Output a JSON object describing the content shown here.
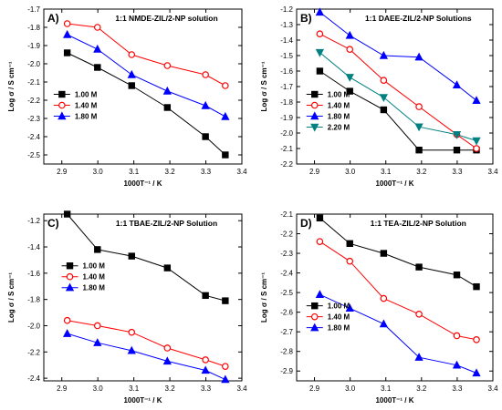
{
  "chart_data": [
    {
      "type": "line",
      "panel_label": "A)",
      "title": "1:1 NMDE-ZIL/2-NP solution",
      "xlabel": "1000T⁻¹ / K",
      "ylabel": "Log σ / S cm⁻¹",
      "xlim": [
        2.85,
        3.4
      ],
      "ylim": [
        -2.55,
        -1.7
      ],
      "xticks": [
        2.9,
        3.0,
        3.1,
        3.2,
        3.3,
        3.4
      ],
      "xtick_labels": [
        "2.9",
        "3.0",
        "3.1",
        "3.2",
        "3.3",
        "3.4"
      ],
      "yticks": [
        -2.5,
        -2.4,
        -2.3,
        -2.2,
        -2.1,
        -2.0,
        -1.9,
        -1.8,
        -1.7
      ],
      "ytick_labels": [
        "-2.5",
        "-2.4",
        "-2.3",
        "-2.2",
        "-2.1",
        "-2.0",
        "-1.9",
        "-1.8",
        "-1.7"
      ],
      "legend": "lower-left",
      "series": [
        {
          "name": "1.00 M",
          "color": "#000000",
          "marker": "square",
          "x": [
            2.915,
            2.999,
            3.094,
            3.193,
            3.299,
            3.354
          ],
          "y": [
            -1.94,
            -2.02,
            -2.12,
            -2.24,
            -2.4,
            -2.5
          ]
        },
        {
          "name": "1.40 M",
          "color": "#ff0000",
          "marker": "circle",
          "x": [
            2.915,
            2.999,
            3.094,
            3.193,
            3.299,
            3.354
          ],
          "y": [
            -1.78,
            -1.8,
            -1.95,
            -2.01,
            -2.06,
            -2.12
          ]
        },
        {
          "name": "1.80 M",
          "color": "#0000ff",
          "marker": "triangle",
          "x": [
            2.915,
            2.999,
            3.094,
            3.193,
            3.299,
            3.354
          ],
          "y": [
            -1.84,
            -1.92,
            -2.06,
            -2.15,
            -2.23,
            -2.29
          ]
        }
      ]
    },
    {
      "type": "line",
      "panel_label": "B)",
      "title": "1:1 DAEE-ZIL/2-NP Solutions",
      "xlabel": "1000T⁻¹ / K",
      "ylabel": "Log σ / S cm⁻¹",
      "xlim": [
        2.85,
        3.4
      ],
      "ylim": [
        -2.2,
        -1.2
      ],
      "xticks": [
        2.9,
        3.0,
        3.1,
        3.2,
        3.3,
        3.4
      ],
      "xtick_labels": [
        "2.9",
        "3.0",
        "3.1",
        "3.2",
        "3.3",
        "3.4"
      ],
      "yticks": [
        -2.2,
        -2.1,
        -2.0,
        -1.9,
        -1.8,
        -1.7,
        -1.6,
        -1.5,
        -1.4,
        -1.3,
        -1.2
      ],
      "ytick_labels": [
        "-2.2",
        "-2.1",
        "-2.0",
        "-1.9",
        "-1.8",
        "-1.7",
        "-1.6",
        "-1.5",
        "-1.4",
        "-1.3",
        "-1.2"
      ],
      "legend": "lower-left",
      "series": [
        {
          "name": "1.00 M",
          "color": "#000000",
          "marker": "square",
          "x": [
            2.915,
            2.999,
            3.094,
            3.193,
            3.299,
            3.354
          ],
          "y": [
            -1.6,
            -1.73,
            -1.85,
            -2.11,
            -2.11,
            -2.11
          ]
        },
        {
          "name": "1.40 M",
          "color": "#ff0000",
          "marker": "circle",
          "x": [
            2.915,
            2.999,
            3.094,
            3.193,
            3.299,
            3.354
          ],
          "y": [
            -1.36,
            -1.46,
            -1.66,
            -1.83,
            -2.01,
            -2.1
          ]
        },
        {
          "name": "1.80 M",
          "color": "#0000ff",
          "marker": "triangle",
          "x": [
            2.915,
            2.999,
            3.094,
            3.193,
            3.299,
            3.354
          ],
          "y": [
            -1.22,
            -1.37,
            -1.5,
            -1.51,
            -1.69,
            -1.79
          ]
        },
        {
          "name": "2.20 M",
          "color": "#008080",
          "marker": "triangle-down",
          "x": [
            2.915,
            2.999,
            3.094,
            3.193,
            3.299,
            3.354
          ],
          "y": [
            -1.48,
            -1.64,
            -1.77,
            -1.96,
            -2.01,
            -2.05
          ]
        }
      ]
    },
    {
      "type": "line",
      "panel_label": "C)",
      "title": "1:1 TBAE-ZIL/2-NP Solution",
      "xlabel": "1000T⁻¹ / K",
      "ylabel": "Log σ / S cm⁻¹",
      "xlim": [
        2.85,
        3.4
      ],
      "ylim": [
        -2.42,
        -1.15
      ],
      "xticks": [
        2.9,
        3.0,
        3.1,
        3.2,
        3.3,
        3.4
      ],
      "xtick_labels": [
        "2.9",
        "3.0",
        "3.1",
        "3.2",
        "3.3",
        "3.4"
      ],
      "yticks": [
        -2.4,
        -2.2,
        -2.0,
        -1.8,
        -1.6,
        -1.4,
        -1.2
      ],
      "ytick_labels": [
        "-2.4",
        "-2.2",
        "-2.0",
        "-1.8",
        "-1.6",
        "-1.4",
        "-1.2"
      ],
      "legend": "upper-center",
      "series": [
        {
          "name": "1.00 M",
          "color": "#000000",
          "marker": "square",
          "x": [
            2.915,
            2.999,
            3.094,
            3.193,
            3.299,
            3.354
          ],
          "y": [
            -1.15,
            -1.42,
            -1.47,
            -1.56,
            -1.77,
            -1.81
          ]
        },
        {
          "name": "1.40 M",
          "color": "#ff0000",
          "marker": "circle",
          "x": [
            2.915,
            2.999,
            3.094,
            3.193,
            3.299,
            3.354
          ],
          "y": [
            -1.96,
            -2.0,
            -2.05,
            -2.17,
            -2.26,
            -2.31
          ]
        },
        {
          "name": "1.80 M",
          "color": "#0000ff",
          "marker": "triangle",
          "x": [
            2.915,
            2.999,
            3.094,
            3.193,
            3.299,
            3.354
          ],
          "y": [
            -2.06,
            -2.13,
            -2.19,
            -2.27,
            -2.34,
            -2.41
          ]
        }
      ]
    },
    {
      "type": "line",
      "panel_label": "D)",
      "title": "1:1 TEA-ZIL/2-NP Solution",
      "xlabel": "1000T⁻¹ / K",
      "ylabel": "Log σ / S cm⁻¹",
      "xlim": [
        2.85,
        3.4
      ],
      "ylim": [
        -2.95,
        -2.1
      ],
      "xticks": [
        2.9,
        3.0,
        3.1,
        3.2,
        3.3,
        3.4
      ],
      "xtick_labels": [
        "2.9",
        "3.0",
        "3.1",
        "3.2",
        "3.3",
        "3.4"
      ],
      "yticks": [
        -2.9,
        -2.8,
        -2.7,
        -2.6,
        -2.5,
        -2.4,
        -2.3,
        -2.2,
        -2.1
      ],
      "ytick_labels": [
        "-2.9",
        "-2.8",
        "-2.7",
        "-2.6",
        "-2.5",
        "-2.4",
        "-2.3",
        "-2.2",
        "-2.1"
      ],
      "legend": "lower-left",
      "series": [
        {
          "name": "1.00 M",
          "color": "#000000",
          "marker": "square",
          "x": [
            2.915,
            2.999,
            3.094,
            3.193,
            3.299,
            3.354
          ],
          "y": [
            -2.12,
            -2.25,
            -2.3,
            -2.37,
            -2.41,
            -2.47
          ]
        },
        {
          "name": "1.40 M",
          "color": "#ff0000",
          "marker": "circle",
          "x": [
            2.915,
            2.999,
            3.094,
            3.193,
            3.299,
            3.354
          ],
          "y": [
            -2.24,
            -2.34,
            -2.53,
            -2.61,
            -2.72,
            -2.74
          ]
        },
        {
          "name": "1.80 M",
          "color": "#0000ff",
          "marker": "triangle",
          "x": [
            2.915,
            2.999,
            3.094,
            3.193,
            3.299,
            3.354
          ],
          "y": [
            -2.51,
            -2.58,
            -2.66,
            -2.83,
            -2.87,
            -2.91
          ]
        }
      ]
    }
  ]
}
